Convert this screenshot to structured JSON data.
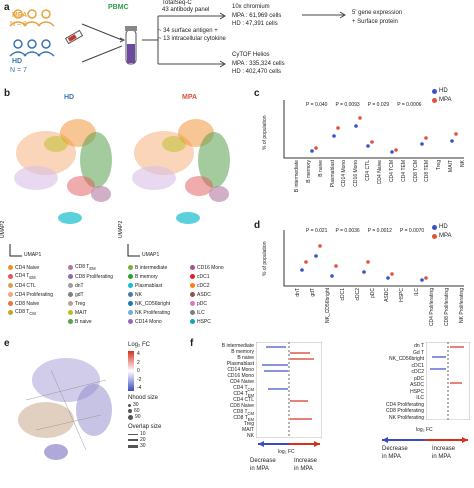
{
  "panel_a": {
    "label": "a",
    "mpa": "MPA",
    "mpa_n": "N = 8",
    "hd": "HD",
    "hd_n": "N = 7",
    "pbmc": "PBMC",
    "top_platform": "TotalSeq-C",
    "top_panel": "43 antibody panel",
    "chromium": "10x chromium",
    "chromium_mpa": "MPA : 61,969 cells",
    "chromium_hd": "HD : 47,391 cells",
    "readout1": "5' gene expression",
    "readout2": "+ Surface protein",
    "mid1": "~ 34 surface antigen +",
    "mid2": "~ 13 intracellular cytokine",
    "cytof": "CyTOF Helios",
    "cytof_mpa": "MPA : 335,324 cells",
    "cytof_hd": "HD : 402,470 cells"
  },
  "panel_b": {
    "label": "b",
    "hd_title": "HD",
    "mpa_title": "MPA",
    "umap1": "UMAP1",
    "umap2": "UMAP2",
    "legend_col1": [
      "CD4 Naive",
      "CD4 T<sub>EM</sub>",
      "CD4 CTL",
      "CD4 Proliferating",
      "CD8 Naive",
      "CD8 T<sub>CM</sub>"
    ],
    "legend_col2": [
      "CD8 T<sub>EM</sub>",
      "CD8 Proliferating",
      "dnT",
      "gdT",
      "Treg",
      "MAIT",
      "B naive"
    ],
    "legend_col3": [
      "B intermediate",
      "B memory",
      "Plasmablast",
      "NK",
      "NK_CD56bright",
      "NK Proliferating",
      "CD14 Mono"
    ],
    "legend_col4": [
      "CD16 Mono",
      "cDC1",
      "cDC2",
      "ASDC",
      "pDC",
      "ILC",
      "HSPC"
    ],
    "legend_col1_plain": [
      "CD4 Naive",
      "CD4 TEM",
      "CD4 CTL",
      "CD4 Proliferating",
      "CD8 Naive",
      "CD8 TCM"
    ],
    "legend_col2_plain": [
      "CD8 TEM",
      "CD8 Proliferating",
      "dnT",
      "gdT",
      "Treg",
      "MAIT",
      "B naive"
    ],
    "colors_col1": [
      "#f28e2b",
      "#e15759",
      "#d4a24c",
      "#f4a582",
      "#e8743b",
      "#c9a227"
    ],
    "colors_col2": [
      "#b07aa1",
      "#8c6bb1",
      "#9e9e9e",
      "#7f7f7f",
      "#c49c94",
      "#bcbd22",
      "#59a14f"
    ],
    "colors_col3": [
      "#76b041",
      "#2ca02c",
      "#17becf",
      "#4e79a7",
      "#1f77b4",
      "#6baed6",
      "#9467bd"
    ],
    "colors_col4": [
      "#a55194",
      "#d62728",
      "#ff7f0e",
      "#8c564b",
      "#e377c2",
      "#7f7f7f",
      "#17a2b8"
    ]
  },
  "panel_c": {
    "label": "c",
    "ylabel": "% of population",
    "legend_hd": "HD",
    "legend_mpa": "MPA",
    "pvalues": [
      "P = 0.040",
      "P = 0.0093",
      "P = 0.029",
      "P = 0.0006"
    ],
    "categories": [
      "B intermediate",
      "B memory",
      "B naive",
      "Plasmablast",
      "CD14 Mono",
      "CD16 Mono",
      "CD4 CTL",
      "CD4 Naive",
      "CD4 TCM",
      "CD4 TEM",
      "CD8 TCM",
      "CD8 TEM",
      "Treg",
      "MAIT",
      "NK"
    ]
  },
  "panel_d": {
    "label": "d",
    "ylabel": "% of population",
    "legend_hd": "HD",
    "legend_mpa": "MPA",
    "pvalues": [
      "P = 0.021",
      "P = 0.0036",
      "P = 0.0012",
      "P = 0.0070"
    ],
    "categories": [
      "dnT",
      "gdT",
      "NK_CD56bright",
      "cDC1",
      "cDC2",
      "pDC",
      "ASDC",
      "HSPC",
      "ILC",
      "CD4 Proliferating",
      "CD8 Proliferating",
      "NK Proliferating"
    ]
  },
  "panel_e": {
    "label": "e",
    "fc_title": "Log₂ FC",
    "fc_ticks": [
      "4",
      "2",
      "0",
      "-2",
      "-4"
    ],
    "nhood_title": "Nhood size",
    "nhood_vals": [
      "30",
      "60",
      "90"
    ],
    "overlap_title": "Overlap size",
    "overlap_vals": [
      "10",
      "20",
      "30"
    ]
  },
  "panel_f": {
    "label": "f",
    "left_rows": [
      "B intermediate",
      "B memory",
      "B naive",
      "Plasmablast",
      "CD14 Mono",
      "CD16 Mono",
      "CD4 Naive",
      "CD4 T<sub>CM</sub>",
      "CD4 T<sub>EM</sub>",
      "CD4 CTL",
      "CD8 Naive",
      "CD8 T<sub>CM</sub>",
      "CD8 T<sub>EM</sub>",
      "Treg",
      "MAIT",
      "NK"
    ],
    "right_rows": [
      "dn T",
      "Gd T",
      "NK_CD56bright",
      "cDC1",
      "cDC2",
      "pDC",
      "ASDC",
      "HSPC",
      "ILC",
      "CD4 Proliferating",
      "CD8 Proliferating",
      "NK Proliferating"
    ],
    "xlabel": "log₂ FC",
    "decrease": "Decrease",
    "decrease2": "in MPA",
    "increase": "Increase",
    "increase2": "in MPA"
  }
}
